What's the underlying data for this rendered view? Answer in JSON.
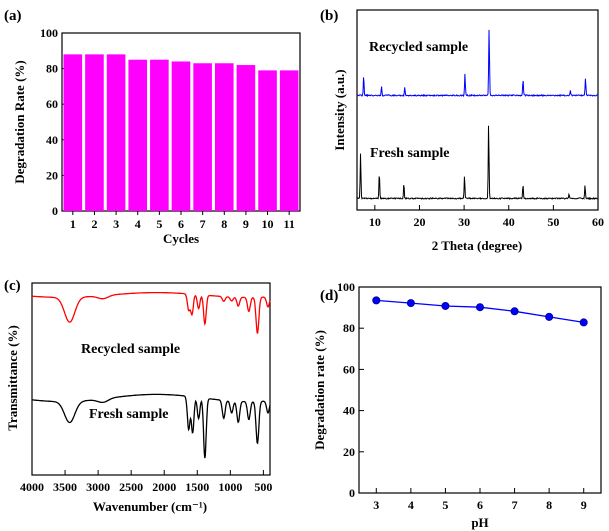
{
  "chart_data": [
    {
      "panel": "(a)",
      "type": "bar",
      "title": "",
      "xlabel": "Cycles",
      "ylabel": "Degradation Rate (%)",
      "categories": [
        "1",
        "2",
        "3",
        "4",
        "5",
        "6",
        "7",
        "8",
        "9",
        "10",
        "11"
      ],
      "values": [
        88,
        88,
        88,
        85,
        85,
        84,
        83,
        83,
        82,
        79,
        79
      ],
      "ylim": [
        0,
        100
      ],
      "yticks": [
        0,
        20,
        40,
        60,
        80,
        100
      ],
      "bar_color": "#ff00ff"
    },
    {
      "panel": "(b)",
      "type": "line",
      "xlabel": "2 Theta (degree)",
      "ylabel": "Intensity (a.u.)",
      "xlim": [
        6,
        60
      ],
      "xticks": [
        10,
        20,
        30,
        40,
        50,
        60
      ],
      "series": [
        {
          "name": "Recycled sample",
          "color": "#0000ff",
          "peaks": [
            [
              7.5,
              0.25
            ],
            [
              11.5,
              0.12
            ],
            [
              16.7,
              0.1
            ],
            [
              30.2,
              0.28
            ],
            [
              35.6,
              0.85
            ],
            [
              43.2,
              0.2
            ],
            [
              53.8,
              0.06
            ],
            [
              57.2,
              0.22
            ]
          ]
        },
        {
          "name": "Fresh sample",
          "color": "#000000",
          "peaks": [
            [
              6.8,
              0.6
            ],
            [
              11.0,
              0.35
            ],
            [
              16.5,
              0.2
            ],
            [
              30.1,
              0.3
            ],
            [
              35.5,
              1.0
            ],
            [
              43.2,
              0.18
            ],
            [
              53.5,
              0.06
            ],
            [
              57.1,
              0.18
            ]
          ]
        }
      ]
    },
    {
      "panel": "(c)",
      "type": "line",
      "xlabel": "Wavenumber (cm⁻¹)",
      "ylabel": "Transmittance (%)",
      "xlim": [
        4000,
        400
      ],
      "xticks": [
        4000,
        3500,
        3000,
        2500,
        2000,
        1500,
        1000,
        500
      ],
      "series": [
        {
          "name": "Recycled sample",
          "color": "#ff0000",
          "bands": [
            [
              3430,
              0.62
            ],
            [
              2925,
              0.08
            ],
            [
              1630,
              0.4
            ],
            [
              1580,
              0.5
            ],
            [
              1480,
              0.35
            ],
            [
              1385,
              0.72
            ],
            [
              1100,
              0.12
            ],
            [
              980,
              0.1
            ],
            [
              880,
              0.22
            ],
            [
              720,
              0.35
            ],
            [
              590,
              0.9
            ],
            [
              430,
              0.25
            ]
          ]
        },
        {
          "name": "Fresh sample",
          "color": "#000000",
          "bands": [
            [
              3430,
              0.35
            ],
            [
              2925,
              0.06
            ],
            [
              1630,
              0.55
            ],
            [
              1570,
              0.6
            ],
            [
              1480,
              0.35
            ],
            [
              1385,
              1.0
            ],
            [
              1100,
              0.3
            ],
            [
              980,
              0.2
            ],
            [
              880,
              0.35
            ],
            [
              720,
              0.3
            ],
            [
              590,
              0.7
            ],
            [
              430,
              0.2
            ]
          ]
        }
      ]
    },
    {
      "panel": "(d)",
      "type": "line",
      "xlabel": "pH",
      "ylabel": "Degradation rate (%)",
      "x": [
        3,
        4,
        5,
        6,
        7,
        8,
        9
      ],
      "y": [
        93.5,
        92.2,
        90.8,
        90.2,
        88.2,
        85.5,
        82.8
      ],
      "xlim": [
        2.5,
        9.5
      ],
      "ylim": [
        0,
        100
      ],
      "xticks": [
        3,
        4,
        5,
        6,
        7,
        8,
        9
      ],
      "yticks": [
        0,
        20,
        40,
        60,
        80,
        100
      ],
      "color": "#0000ff",
      "marker": "circle"
    }
  ]
}
